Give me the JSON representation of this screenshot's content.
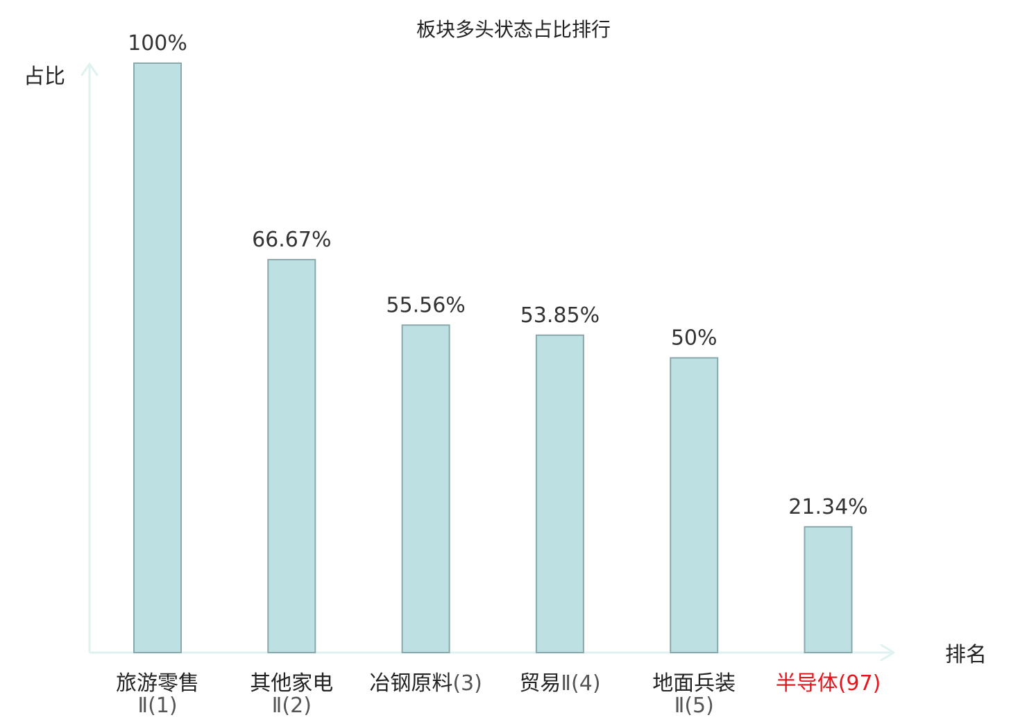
{
  "chart_data": {
    "type": "bar",
    "title": "板块多头状态占比排行",
    "ylabel": "占比",
    "xlabel": "排名",
    "ylim": [
      0,
      100
    ],
    "grid": false,
    "categories": [
      {
        "name": "旅游零售",
        "rank": "Ⅱ(1)",
        "highlight": false
      },
      {
        "name": "其他家电",
        "rank": "Ⅱ(2)",
        "highlight": false
      },
      {
        "name": "冶钢原料",
        "rank": "(3)",
        "highlight": false
      },
      {
        "name": "贸易",
        "rank": "Ⅱ(4)",
        "highlight": false
      },
      {
        "name": "地面兵装",
        "rank": "Ⅱ(5)",
        "highlight": false
      },
      {
        "name": "半导体",
        "rank": "(97)",
        "highlight": true
      }
    ],
    "values": [
      100,
      66.67,
      55.56,
      53.85,
      50,
      21.34
    ],
    "value_labels": [
      "100%",
      "66.67%",
      "55.56%",
      "53.85%",
      "50%",
      "21.34%"
    ],
    "colors": {
      "bar_fill": "#bde0e3",
      "bar_stroke": "#88a8ac",
      "axis": "#dff2ef",
      "label_text": "#222222",
      "value_text": "#333333",
      "highlight_text": "#e8141b"
    }
  }
}
